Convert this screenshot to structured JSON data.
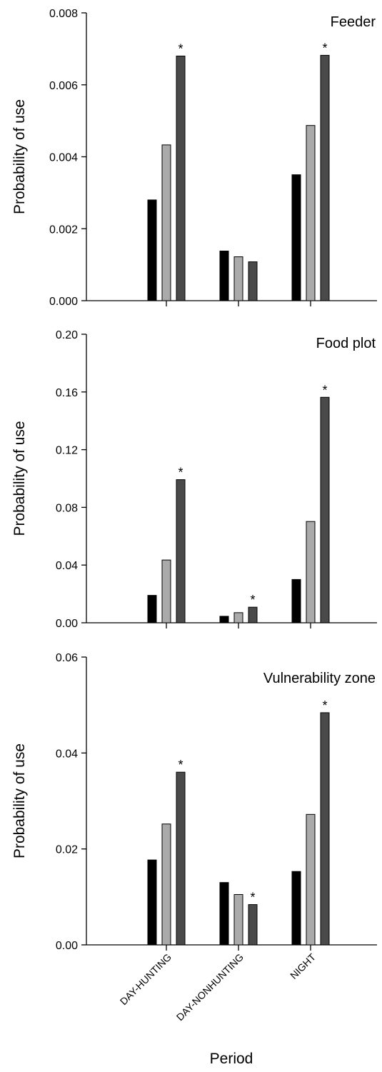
{
  "chart_data": {
    "type": "bar",
    "xlabel": "Period",
    "categories": [
      "DAY-HUNTING",
      "DAY-NONHUNTING",
      "NIGHT"
    ],
    "series_colors": [
      "#000000",
      "#aaaaaa",
      "#4a4a4a"
    ],
    "panels": [
      {
        "title": "Feeder",
        "ylabel": "Probability of use",
        "ylim": [
          0,
          0.008
        ],
        "yticks": [
          "0.000",
          "0.002",
          "0.004",
          "0.006",
          "0.008"
        ],
        "series": [
          {
            "values": [
              0.0028,
              0.00138,
              0.0035
            ]
          },
          {
            "values": [
              0.00433,
              0.00122,
              0.00487
            ]
          },
          {
            "values": [
              0.0068,
              0.00108,
              0.00682
            ]
          }
        ],
        "significant": [
          {
            "category": 0,
            "series": 2
          },
          {
            "category": 2,
            "series": 2
          }
        ]
      },
      {
        "title": "Food plot",
        "ylabel": "Probability of use",
        "ylim": [
          0,
          0.2
        ],
        "yticks": [
          "0.00",
          "0.04",
          "0.08",
          "0.12",
          "0.16",
          "0.20"
        ],
        "series": [
          {
            "values": [
              0.019,
              0.0045,
              0.03
            ]
          },
          {
            "values": [
              0.0435,
              0.007,
              0.0702
            ]
          },
          {
            "values": [
              0.0992,
              0.0108,
              0.1563
            ]
          }
        ],
        "significant": [
          {
            "category": 0,
            "series": 2
          },
          {
            "category": 1,
            "series": 2
          },
          {
            "category": 2,
            "series": 2
          }
        ]
      },
      {
        "title": "Vulnerability zone",
        "ylabel": "Probability of use",
        "ylim": [
          0,
          0.06
        ],
        "yticks": [
          "0.00",
          "0.02",
          "0.04",
          "0.06"
        ],
        "series": [
          {
            "values": [
              0.0177,
              0.013,
              0.0153
            ]
          },
          {
            "values": [
              0.0252,
              0.0105,
              0.0272
            ]
          },
          {
            "values": [
              0.036,
              0.0084,
              0.0484
            ]
          }
        ],
        "significant": [
          {
            "category": 0,
            "series": 2
          },
          {
            "category": 1,
            "series": 2
          },
          {
            "category": 2,
            "series": 2
          }
        ]
      }
    ],
    "significance_marker": "*"
  }
}
